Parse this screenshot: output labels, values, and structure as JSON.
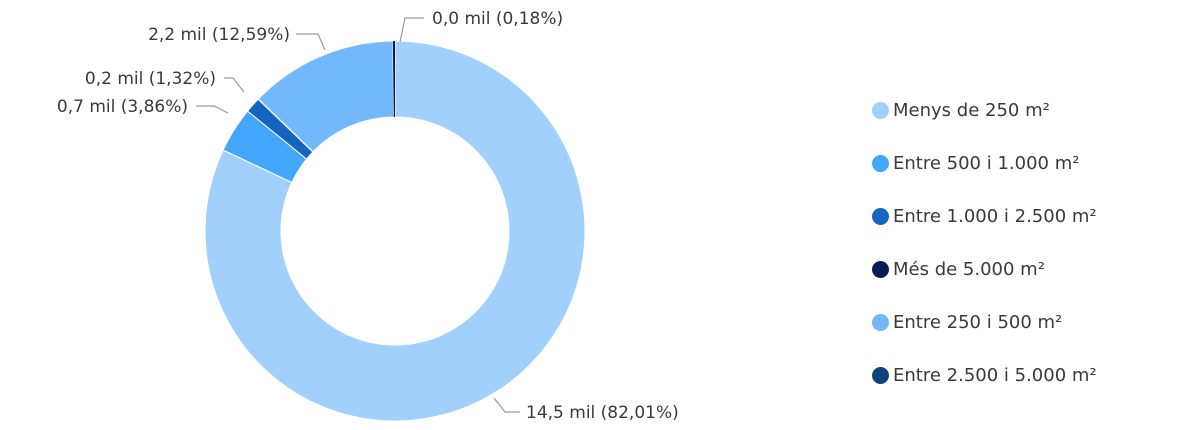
{
  "chart_data": {
    "type": "pie",
    "donut": true,
    "slices": [
      {
        "name": "Menys de 250 m²",
        "value": 14.5,
        "percent": 82.01,
        "label": "14,5 mil (82,01%)",
        "color": "#a2d0fc"
      },
      {
        "name": "Entre 500 i 1.000 m²",
        "value": 0.7,
        "percent": 3.86,
        "label": "0,7 mil (3,86%)",
        "color": "#42a6fa"
      },
      {
        "name": "Entre 1.000 i 2.500 m²",
        "value": 0.2,
        "percent": 1.32,
        "label": "0,2 mil (1,32%)",
        "color": "#1565c0"
      },
      {
        "name": "Més de 5.000 m²",
        "value": 0.0,
        "percent": 0.18,
        "label": "0,0 mil (0,18%)",
        "color": "#0d1b55"
      },
      {
        "name": "Entre 250 i 500 m²",
        "value": 2.2,
        "percent": 12.59,
        "label": "2,2 mil (12,59%)",
        "color": "#72b9fc"
      },
      {
        "name": "Entre 2.500 i 5.000 m²",
        "value": 0.0,
        "percent": 0.04,
        "label": "",
        "color": "#10437e"
      }
    ],
    "slice_order": [
      0,
      1,
      2,
      5,
      4,
      3
    ],
    "legend_position": "right"
  }
}
